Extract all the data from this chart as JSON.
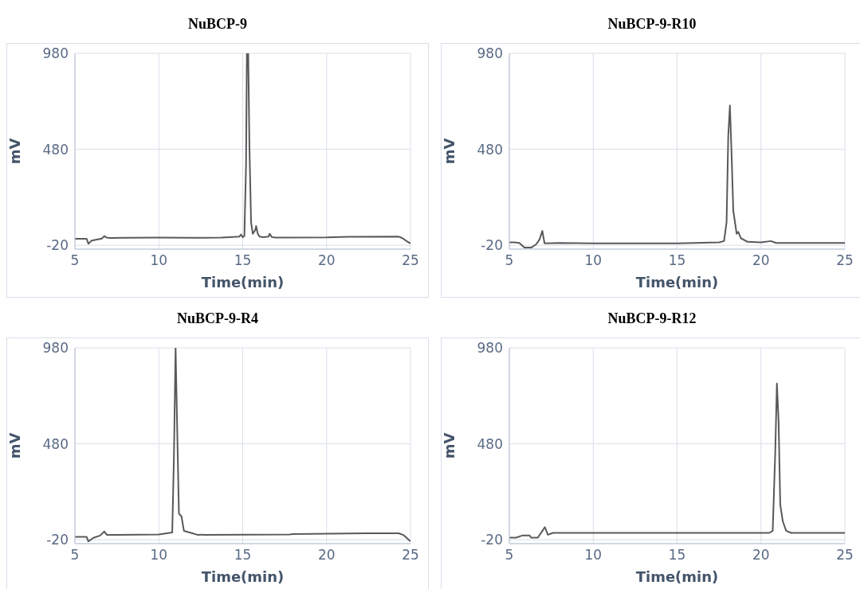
{
  "chart_data": [
    {
      "type": "line",
      "title": "NuBCP-9",
      "xlabel": "Time(min)",
      "ylabel": "mV",
      "color": "#595959",
      "marker": "none",
      "grid": true,
      "xlim": [
        5,
        25
      ],
      "ylim": [
        -40,
        980
      ],
      "xticks": [
        5,
        10,
        15,
        20,
        25
      ],
      "yticks": [
        -20,
        480,
        980
      ],
      "x": [
        5,
        5.7,
        5.8,
        6.0,
        6.3,
        6.6,
        6.75,
        6.9,
        7.1,
        8,
        10,
        12,
        13.7,
        14.2,
        14.8,
        14.9,
        15.0,
        15.1,
        15.2,
        15.25,
        15.33,
        15.4,
        15.5,
        15.6,
        15.75,
        15.8,
        15.9,
        16.0,
        16.2,
        16.55,
        16.6,
        16.75,
        17,
        20,
        21.3,
        24.3,
        24.5,
        24.8,
        25
      ],
      "values": [
        14,
        14,
        -12,
        5,
        10,
        15,
        28,
        20,
        18,
        19,
        20,
        19,
        20,
        22,
        25,
        36,
        22,
        28,
        400,
        980,
        980,
        500,
        100,
        40,
        60,
        80,
        40,
        25,
        22,
        25,
        40,
        22,
        20,
        21,
        24,
        25,
        18,
        0,
        -10
      ]
    },
    {
      "type": "line",
      "title": "NuBCP-9-R10",
      "xlabel": "Time(min)",
      "ylabel": "mV",
      "color": "#595959",
      "marker": "none",
      "grid": true,
      "xlim": [
        5,
        25
      ],
      "ylim": [
        -40,
        980
      ],
      "xticks": [
        5,
        10,
        15,
        20,
        25
      ],
      "yticks": [
        -20,
        480,
        980
      ],
      "x": [
        5,
        5.3,
        5.6,
        5.9,
        6.3,
        6.6,
        6.8,
        6.97,
        7.1,
        8,
        10,
        15,
        17.5,
        17.8,
        17.95,
        18.05,
        18.15,
        18.25,
        18.35,
        18.55,
        18.65,
        18.8,
        19.2,
        20,
        20.6,
        20.9,
        25
      ],
      "values": [
        -5,
        -5,
        -8,
        -32,
        -32,
        -15,
        10,
        55,
        -10,
        -8,
        -10,
        -10,
        -5,
        2,
        100,
        550,
        708,
        450,
        160,
        40,
        50,
        17,
        -2,
        -5,
        2,
        -8,
        -8
      ]
    },
    {
      "type": "line",
      "title": "NuBCP-9-R4",
      "xlabel": "Time(min)",
      "ylabel": "mV",
      "color": "#595959",
      "marker": "none",
      "grid": true,
      "xlim": [
        5,
        25
      ],
      "ylim": [
        -40,
        980
      ],
      "xticks": [
        5,
        10,
        15,
        20,
        25
      ],
      "yticks": [
        -20,
        480,
        980
      ],
      "x": [
        5,
        5.7,
        5.8,
        6.1,
        6.5,
        6.75,
        6.9,
        7.5,
        10,
        10.8,
        10.9,
        11.0,
        11.1,
        11.2,
        11.35,
        11.5,
        12,
        12.3,
        17.8,
        18,
        22.3,
        24.3,
        24.6,
        24.9,
        25
      ],
      "values": [
        -5,
        -5,
        -28,
        -10,
        2,
        23,
        6,
        6,
        8,
        18,
        407,
        980,
        540,
        117,
        102,
        26,
        14,
        6,
        8,
        10,
        14,
        14,
        4,
        -20,
        -28
      ]
    },
    {
      "type": "line",
      "title": "NuBCP-9-R12",
      "xlabel": "Time(min)",
      "ylabel": "mV",
      "color": "#595959",
      "marker": "none",
      "grid": true,
      "xlim": [
        5,
        25
      ],
      "ylim": [
        -40,
        980
      ],
      "xticks": [
        5,
        10,
        15,
        20,
        25
      ],
      "yticks": [
        -20,
        480,
        980
      ],
      "x": [
        5,
        5.4,
        5.8,
        6.2,
        6.3,
        6.7,
        7.0,
        7.12,
        7.3,
        7.6,
        20.5,
        20.7,
        20.85,
        20.95,
        21.05,
        21.15,
        21.3,
        21.5,
        21.8,
        25
      ],
      "values": [
        -9,
        -9,
        3,
        3,
        -9,
        -9,
        30,
        46,
        6,
        16,
        16,
        27,
        434,
        794,
        600,
        163,
        77,
        27,
        16,
        16
      ]
    }
  ]
}
